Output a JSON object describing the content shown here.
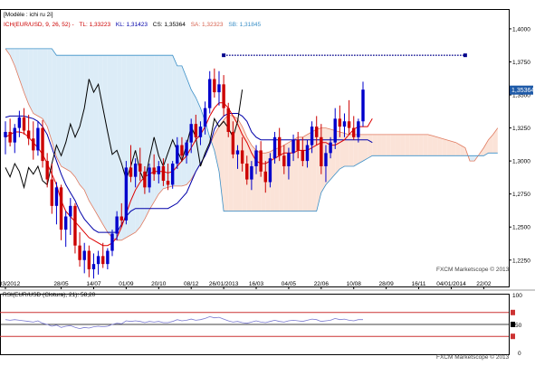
{
  "header": {
    "model_label": "[Modèle : ichi ru 2i]",
    "legend": [
      {
        "text": "ICH(EUR/USD, 9, 26, 52) -",
        "color": "#cc0000"
      },
      {
        "text": "TL: 1,33223",
        "color": "#cc0000"
      },
      {
        "text": "KL: 1,31423",
        "color": "#0000aa"
      },
      {
        "text": "CS: 1,35364",
        "color": "#000000"
      },
      {
        "text": "SA: 1,32323",
        "color": "#d6604d"
      },
      {
        "text": "SB: 1,31845",
        "color": "#3a8fc7"
      }
    ]
  },
  "watermark": "FXCM Marketscope © 2013",
  "price_badge": "1,35364",
  "colors": {
    "candle_up": "#0000cc",
    "candle_down": "#cc0000",
    "tenkan": "#dd0000",
    "kijun": "#0000aa",
    "chikou": "#000000",
    "senkou_a": "#e07a5f",
    "senkou_b": "#3a8fc7",
    "cloud_bull": "#fbe3d8",
    "cloud_bear": "#dcecf7",
    "rsi_line": "#7a7ad0",
    "rsi_level": "#cc3333",
    "marker": "#00008b",
    "badge_bg": "#1e5aa8"
  },
  "rsi_header": "RSI(EUR/USD (Clotura), 21): 58,20",
  "rsi_ticks": [
    "100",
    "50",
    "0"
  ],
  "chart_data": {
    "type": "candlestick",
    "instrument": "EUR/USD",
    "timeframe": "weekly",
    "yticks": [
      "1,4000",
      "1,3750",
      "1,3500",
      "1,3250",
      "1,3000",
      "1,2750",
      "1,2500",
      "1,2250"
    ],
    "ylim": [
      1.205,
      1.415
    ],
    "grid": false,
    "xticks": [
      {
        "label": "05/03/2012",
        "idx": 0
      },
      {
        "label": "28/05",
        "idx": 12
      },
      {
        "label": "14/07",
        "idx": 19
      },
      {
        "label": "01/09",
        "idx": 26
      },
      {
        "label": "20/10",
        "idx": 33
      },
      {
        "label": "08/12",
        "idx": 40
      },
      {
        "label": "26/01/2013",
        "idx": 47
      },
      {
        "label": "16/03",
        "idx": 54
      },
      {
        "label": "04/05",
        "idx": 61
      },
      {
        "label": "22/06",
        "idx": 68
      },
      {
        "label": "10/08",
        "idx": 75
      },
      {
        "label": "28/09",
        "idx": 82
      },
      {
        "label": "16/11",
        "idx": 89
      },
      {
        "label": "04/01/2014",
        "idx": 96
      },
      {
        "label": "22/02",
        "idx": 103
      }
    ],
    "candles": [
      {
        "o": 1.318,
        "h": 1.33,
        "l": 1.305,
        "c": 1.322
      },
      {
        "o": 1.322,
        "h": 1.332,
        "l": 1.311,
        "c": 1.314
      },
      {
        "o": 1.314,
        "h": 1.328,
        "l": 1.306,
        "c": 1.325
      },
      {
        "o": 1.325,
        "h": 1.338,
        "l": 1.318,
        "c": 1.333
      },
      {
        "o": 1.333,
        "h": 1.34,
        "l": 1.32,
        "c": 1.323
      },
      {
        "o": 1.323,
        "h": 1.335,
        "l": 1.312,
        "c": 1.317
      },
      {
        "o": 1.317,
        "h": 1.33,
        "l": 1.301,
        "c": 1.308
      },
      {
        "o": 1.308,
        "h": 1.33,
        "l": 1.304,
        "c": 1.325
      },
      {
        "o": 1.325,
        "h": 1.331,
        "l": 1.295,
        "c": 1.3
      },
      {
        "o": 1.3,
        "h": 1.306,
        "l": 1.28,
        "c": 1.286
      },
      {
        "o": 1.286,
        "h": 1.298,
        "l": 1.26,
        "c": 1.266
      },
      {
        "o": 1.266,
        "h": 1.284,
        "l": 1.252,
        "c": 1.28
      },
      {
        "o": 1.28,
        "h": 1.282,
        "l": 1.24,
        "c": 1.248
      },
      {
        "o": 1.248,
        "h": 1.262,
        "l": 1.235,
        "c": 1.258
      },
      {
        "o": 1.258,
        "h": 1.272,
        "l": 1.244,
        "c": 1.266
      },
      {
        "o": 1.266,
        "h": 1.268,
        "l": 1.23,
        "c": 1.236
      },
      {
        "o": 1.236,
        "h": 1.246,
        "l": 1.22,
        "c": 1.225
      },
      {
        "o": 1.225,
        "h": 1.238,
        "l": 1.215,
        "c": 1.232
      },
      {
        "o": 1.232,
        "h": 1.236,
        "l": 1.212,
        "c": 1.218
      },
      {
        "o": 1.218,
        "h": 1.23,
        "l": 1.211,
        "c": 1.222
      },
      {
        "o": 1.222,
        "h": 1.232,
        "l": 1.214,
        "c": 1.228
      },
      {
        "o": 1.228,
        "h": 1.238,
        "l": 1.219,
        "c": 1.222
      },
      {
        "o": 1.222,
        "h": 1.234,
        "l": 1.218,
        "c": 1.232
      },
      {
        "o": 1.232,
        "h": 1.248,
        "l": 1.228,
        "c": 1.245
      },
      {
        "o": 1.245,
        "h": 1.262,
        "l": 1.24,
        "c": 1.258
      },
      {
        "o": 1.258,
        "h": 1.268,
        "l": 1.25,
        "c": 1.255
      },
      {
        "o": 1.255,
        "h": 1.3,
        "l": 1.252,
        "c": 1.295
      },
      {
        "o": 1.295,
        "h": 1.312,
        "l": 1.284,
        "c": 1.288
      },
      {
        "o": 1.288,
        "h": 1.302,
        "l": 1.28,
        "c": 1.298
      },
      {
        "o": 1.298,
        "h": 1.31,
        "l": 1.285,
        "c": 1.292
      },
      {
        "o": 1.292,
        "h": 1.296,
        "l": 1.275,
        "c": 1.28
      },
      {
        "o": 1.28,
        "h": 1.298,
        "l": 1.276,
        "c": 1.295
      },
      {
        "o": 1.295,
        "h": 1.305,
        "l": 1.285,
        "c": 1.29
      },
      {
        "o": 1.29,
        "h": 1.3,
        "l": 1.283,
        "c": 1.296
      },
      {
        "o": 1.296,
        "h": 1.302,
        "l": 1.281,
        "c": 1.285
      },
      {
        "o": 1.285,
        "h": 1.298,
        "l": 1.278,
        "c": 1.282
      },
      {
        "o": 1.282,
        "h": 1.3,
        "l": 1.279,
        "c": 1.298
      },
      {
        "o": 1.298,
        "h": 1.318,
        "l": 1.294,
        "c": 1.312
      },
      {
        "o": 1.312,
        "h": 1.318,
        "l": 1.3,
        "c": 1.304
      },
      {
        "o": 1.304,
        "h": 1.316,
        "l": 1.298,
        "c": 1.314
      },
      {
        "o": 1.314,
        "h": 1.332,
        "l": 1.306,
        "c": 1.328
      },
      {
        "o": 1.328,
        "h": 1.335,
        "l": 1.315,
        "c": 1.318
      },
      {
        "o": 1.318,
        "h": 1.33,
        "l": 1.312,
        "c": 1.326
      },
      {
        "o": 1.326,
        "h": 1.345,
        "l": 1.32,
        "c": 1.34
      },
      {
        "o": 1.34,
        "h": 1.368,
        "l": 1.336,
        "c": 1.362
      },
      {
        "o": 1.362,
        "h": 1.37,
        "l": 1.348,
        "c": 1.352
      },
      {
        "o": 1.352,
        "h": 1.368,
        "l": 1.342,
        "c": 1.358
      },
      {
        "o": 1.358,
        "h": 1.365,
        "l": 1.334,
        "c": 1.34
      },
      {
        "o": 1.34,
        "h": 1.344,
        "l": 1.318,
        "c": 1.322
      },
      {
        "o": 1.322,
        "h": 1.33,
        "l": 1.302,
        "c": 1.305
      },
      {
        "o": 1.305,
        "h": 1.312,
        "l": 1.294,
        "c": 1.308
      },
      {
        "o": 1.308,
        "h": 1.318,
        "l": 1.292,
        "c": 1.298
      },
      {
        "o": 1.298,
        "h": 1.304,
        "l": 1.282,
        "c": 1.286
      },
      {
        "o": 1.286,
        "h": 1.3,
        "l": 1.278,
        "c": 1.296
      },
      {
        "o": 1.296,
        "h": 1.312,
        "l": 1.29,
        "c": 1.308
      },
      {
        "o": 1.308,
        "h": 1.315,
        "l": 1.288,
        "c": 1.292
      },
      {
        "o": 1.292,
        "h": 1.3,
        "l": 1.276,
        "c": 1.284
      },
      {
        "o": 1.284,
        "h": 1.306,
        "l": 1.28,
        "c": 1.302
      },
      {
        "o": 1.302,
        "h": 1.322,
        "l": 1.298,
        "c": 1.318
      },
      {
        "o": 1.318,
        "h": 1.325,
        "l": 1.3,
        "c": 1.304
      },
      {
        "o": 1.304,
        "h": 1.312,
        "l": 1.29,
        "c": 1.296
      },
      {
        "o": 1.296,
        "h": 1.31,
        "l": 1.286,
        "c": 1.306
      },
      {
        "o": 1.306,
        "h": 1.32,
        "l": 1.3,
        "c": 1.316
      },
      {
        "o": 1.316,
        "h": 1.322,
        "l": 1.302,
        "c": 1.308
      },
      {
        "o": 1.308,
        "h": 1.318,
        "l": 1.296,
        "c": 1.3
      },
      {
        "o": 1.3,
        "h": 1.316,
        "l": 1.295,
        "c": 1.312
      },
      {
        "o": 1.312,
        "h": 1.33,
        "l": 1.306,
        "c": 1.326
      },
      {
        "o": 1.326,
        "h": 1.334,
        "l": 1.312,
        "c": 1.318
      },
      {
        "o": 1.318,
        "h": 1.328,
        "l": 1.29,
        "c": 1.296
      },
      {
        "o": 1.296,
        "h": 1.312,
        "l": 1.284,
        "c": 1.306
      },
      {
        "o": 1.306,
        "h": 1.318,
        "l": 1.302,
        "c": 1.314
      },
      {
        "o": 1.314,
        "h": 1.34,
        "l": 1.309,
        "c": 1.332
      },
      {
        "o": 1.332,
        "h": 1.342,
        "l": 1.318,
        "c": 1.326
      },
      {
        "o": 1.326,
        "h": 1.336,
        "l": 1.318,
        "c": 1.33
      },
      {
        "o": 1.33,
        "h": 1.346,
        "l": 1.32,
        "c": 1.325
      },
      {
        "o": 1.325,
        "h": 1.334,
        "l": 1.316,
        "c": 1.318
      },
      {
        "o": 1.318,
        "h": 1.332,
        "l": 1.314,
        "c": 1.33
      },
      {
        "o": 1.33,
        "h": 1.36,
        "l": 1.326,
        "c": 1.354
      }
    ],
    "tenkan": [
      1.318,
      1.32,
      1.322,
      1.322,
      1.321,
      1.318,
      1.314,
      1.31,
      1.305,
      1.298,
      1.29,
      1.282,
      1.27,
      1.262,
      1.258,
      1.254,
      1.25,
      1.246,
      1.242,
      1.24,
      1.238,
      1.236,
      1.236,
      1.238,
      1.242,
      1.25,
      1.26,
      1.27,
      1.278,
      1.284,
      1.288,
      1.29,
      1.292,
      1.292,
      1.292,
      1.291,
      1.292,
      1.296,
      1.3,
      1.304,
      1.31,
      1.316,
      1.32,
      1.326,
      1.334,
      1.34,
      1.344,
      1.344,
      1.34,
      1.334,
      1.328,
      1.32,
      1.314,
      1.306,
      1.3,
      1.298,
      1.298,
      1.3,
      1.302,
      1.304,
      1.306,
      1.306,
      1.306,
      1.308,
      1.308,
      1.308,
      1.31,
      1.312,
      1.314,
      1.314,
      1.312,
      1.312,
      1.314,
      1.316,
      1.32,
      1.324,
      1.326,
      1.326,
      1.326,
      1.332
    ],
    "kijun": [
      1.333,
      1.334,
      1.334,
      1.334,
      1.334,
      1.333,
      1.332,
      1.33,
      1.326,
      1.32,
      1.31,
      1.3,
      1.29,
      1.282,
      1.276,
      1.27,
      1.262,
      1.256,
      1.252,
      1.248,
      1.246,
      1.246,
      1.246,
      1.246,
      1.246,
      1.252,
      1.258,
      1.262,
      1.264,
      1.264,
      1.264,
      1.264,
      1.264,
      1.264,
      1.264,
      1.264,
      1.266,
      1.268,
      1.272,
      1.276,
      1.284,
      1.292,
      1.298,
      1.304,
      1.312,
      1.324,
      1.33,
      1.334,
      1.336,
      1.336,
      1.336,
      1.334,
      1.33,
      1.322,
      1.318,
      1.316,
      1.316,
      1.316,
      1.316,
      1.316,
      1.316,
      1.316,
      1.316,
      1.316,
      1.316,
      1.316,
      1.316,
      1.316,
      1.316,
      1.316,
      1.316,
      1.316,
      1.316,
      1.316,
      1.316,
      1.316,
      1.316,
      1.316,
      1.316,
      1.314
    ],
    "chikou_offset": -26,
    "senkou_a": [
      1.385,
      1.38,
      1.372,
      1.362,
      1.352,
      1.343,
      1.336,
      1.334,
      1.332,
      1.326,
      1.315,
      1.303,
      1.296,
      1.294,
      1.292,
      1.288,
      1.282,
      1.278,
      1.27,
      1.264,
      1.258,
      1.252,
      1.246,
      1.242,
      1.24,
      1.24,
      1.242,
      1.244,
      1.246,
      1.25,
      1.256,
      1.263,
      1.269,
      1.275,
      1.279,
      1.28,
      1.281,
      1.281,
      1.281,
      1.282,
      1.286,
      1.292,
      1.298,
      1.304,
      1.312,
      1.32,
      1.326,
      1.331,
      1.335,
      1.334,
      1.332,
      1.326,
      1.318,
      1.312,
      1.308,
      1.306,
      1.306,
      1.307,
      1.309,
      1.31,
      1.312,
      1.314,
      1.316,
      1.318,
      1.318,
      1.32,
      1.322,
      1.324,
      1.325,
      1.325,
      1.324,
      1.323,
      1.322,
      1.321,
      1.32,
      1.32,
      1.32,
      1.32,
      1.32,
      1.32,
      1.32,
      1.32,
      1.32,
      1.32,
      1.32,
      1.32,
      1.32,
      1.32,
      1.32,
      1.32,
      1.32,
      1.32,
      1.319,
      1.318,
      1.317,
      1.316,
      1.315,
      1.314,
      1.312,
      1.31,
      1.3,
      1.3,
      1.305,
      1.31,
      1.316,
      1.32,
      1.325
    ],
    "senkou_b": [
      1.385,
      1.385,
      1.385,
      1.385,
      1.385,
      1.385,
      1.385,
      1.385,
      1.385,
      1.385,
      1.385,
      1.38,
      1.38,
      1.38,
      1.38,
      1.38,
      1.38,
      1.38,
      1.38,
      1.38,
      1.38,
      1.38,
      1.38,
      1.38,
      1.38,
      1.38,
      1.38,
      1.38,
      1.38,
      1.38,
      1.38,
      1.38,
      1.38,
      1.38,
      1.38,
      1.38,
      1.38,
      1.372,
      1.372,
      1.363,
      1.354,
      1.348,
      1.34,
      1.33,
      1.318,
      1.308,
      1.292,
      1.262,
      1.262,
      1.262,
      1.262,
      1.262,
      1.262,
      1.262,
      1.262,
      1.262,
      1.262,
      1.262,
      1.262,
      1.262,
      1.262,
      1.262,
      1.262,
      1.262,
      1.262,
      1.262,
      1.262,
      1.262,
      1.276,
      1.282,
      1.286,
      1.29,
      1.294,
      1.296,
      1.296,
      1.296,
      1.298,
      1.3,
      1.302,
      1.304,
      1.304,
      1.304,
      1.304,
      1.304,
      1.304,
      1.304,
      1.304,
      1.304,
      1.304,
      1.304,
      1.304,
      1.304,
      1.304,
      1.304,
      1.304,
      1.304,
      1.304,
      1.304,
      1.304,
      1.304,
      1.304,
      1.304,
      1.304,
      1.304,
      1.306,
      1.306,
      1.306
    ],
    "marker_line": {
      "y": 1.38,
      "x_start_idx": 47,
      "x_end_idx": 99
    },
    "last_price": 1.35364
  },
  "rsi_data": {
    "ylim": [
      0,
      100
    ],
    "levels": [
      70,
      30
    ],
    "mid": 50,
    "values": [
      58,
      57,
      58,
      57,
      56,
      55,
      54,
      56,
      52,
      50,
      47,
      49,
      45,
      47,
      48,
      45,
      43,
      45,
      44,
      46,
      47,
      46,
      47,
      50,
      52,
      51,
      56,
      55,
      56,
      55,
      53,
      55,
      54,
      55,
      53,
      53,
      55,
      58,
      56,
      57,
      59,
      57,
      58,
      60,
      63,
      61,
      62,
      59,
      56,
      54,
      55,
      53,
      52,
      54,
      56,
      54,
      53,
      55,
      57,
      55,
      54,
      56,
      57,
      56,
      55,
      57,
      59,
      58,
      55,
      56,
      57,
      60,
      58,
      59,
      57,
      56,
      58,
      58
    ]
  }
}
